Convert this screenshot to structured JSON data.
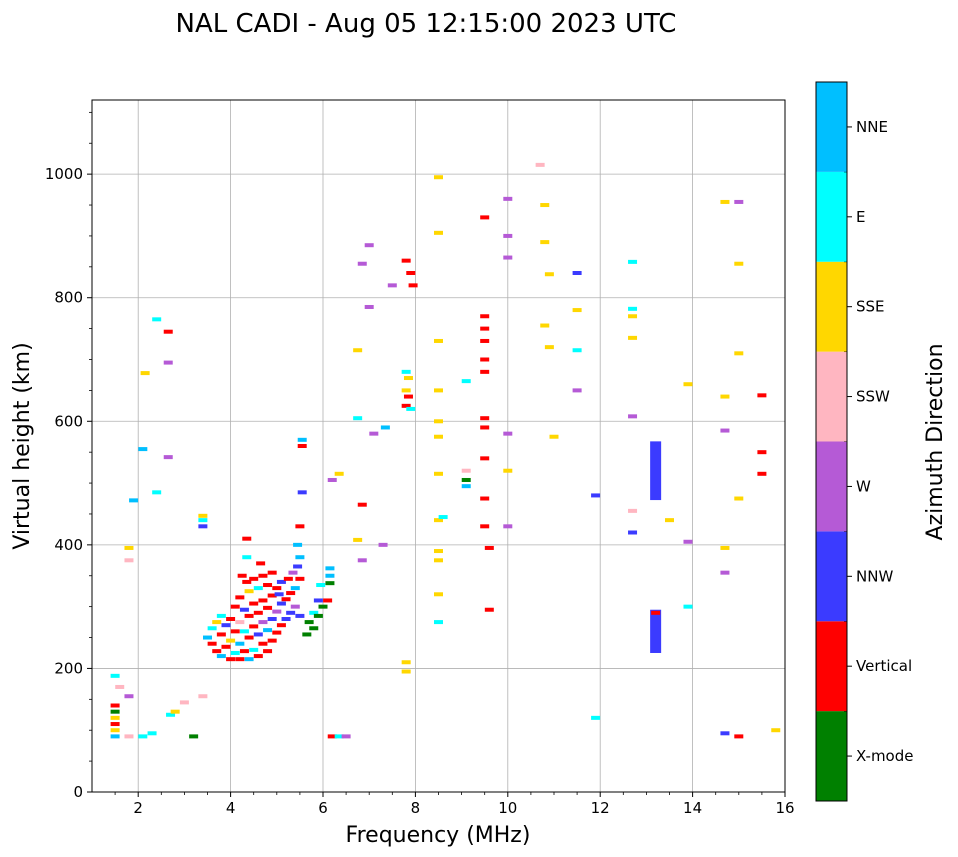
{
  "chart_data": {
    "type": "scatter",
    "title": "NAL CADI - Aug 05 12:15:00 2023 UTC",
    "xlabel": "Frequency (MHz)",
    "ylabel": "Virtual height (km)",
    "xlim": [
      1,
      16
    ],
    "ylim": [
      0,
      1120
    ],
    "xticks": [
      2,
      4,
      6,
      8,
      10,
      12,
      14,
      16
    ],
    "yticks": [
      0,
      200,
      400,
      600,
      800,
      1000
    ],
    "grid": true,
    "colorbar": {
      "title": "Azimuth Direction",
      "categories": [
        {
          "name": "X-mode",
          "color": "#008000"
        },
        {
          "name": "Vertical",
          "color": "#ff0000"
        },
        {
          "name": "NNW",
          "color": "#3b3bff"
        },
        {
          "name": "W",
          "color": "#b55ad6"
        },
        {
          "name": "SSW",
          "color": "#ffb6c1"
        },
        {
          "name": "SSE",
          "color": "#ffd700"
        },
        {
          "name": "E",
          "color": "#00ffff"
        },
        {
          "name": "NNE",
          "color": "#00bfff"
        }
      ]
    },
    "echoes": [
      {
        "f": 1.5,
        "h": 90,
        "c": "NNE"
      },
      {
        "f": 1.5,
        "h": 100,
        "c": "SSE"
      },
      {
        "f": 1.5,
        "h": 110,
        "c": "Vertical"
      },
      {
        "f": 1.5,
        "h": 120,
        "c": "SSE"
      },
      {
        "f": 1.5,
        "h": 130,
        "c": "X-mode"
      },
      {
        "f": 1.5,
        "h": 140,
        "c": "Vertical"
      },
      {
        "f": 1.5,
        "h": 188,
        "c": "E"
      },
      {
        "f": 1.6,
        "h": 170,
        "c": "SSW"
      },
      {
        "f": 1.8,
        "h": 90,
        "c": "SSW"
      },
      {
        "f": 1.8,
        "h": 155,
        "c": "W"
      },
      {
        "f": 1.8,
        "h": 395,
        "c": "SSE"
      },
      {
        "f": 1.8,
        "h": 375,
        "c": "SSW"
      },
      {
        "f": 1.9,
        "h": 472,
        "c": "NNE"
      },
      {
        "f": 2.1,
        "h": 90,
        "c": "E"
      },
      {
        "f": 2.1,
        "h": 555,
        "c": "NNE"
      },
      {
        "f": 2.15,
        "h": 678,
        "c": "SSE"
      },
      {
        "f": 2.3,
        "h": 95,
        "c": "E"
      },
      {
        "f": 2.4,
        "h": 765,
        "c": "E"
      },
      {
        "f": 2.4,
        "h": 485,
        "c": "E"
      },
      {
        "f": 2.65,
        "h": 745,
        "c": "Vertical"
      },
      {
        "f": 2.65,
        "h": 695,
        "c": "W"
      },
      {
        "f": 2.65,
        "h": 542,
        "c": "W"
      },
      {
        "f": 2.7,
        "h": 125,
        "c": "E"
      },
      {
        "f": 2.8,
        "h": 130,
        "c": "SSE"
      },
      {
        "f": 3.0,
        "h": 145,
        "c": "SSW"
      },
      {
        "f": 3.2,
        "h": 90,
        "c": "X-mode"
      },
      {
        "f": 3.4,
        "h": 155,
        "c": "SSW"
      },
      {
        "f": 3.4,
        "h": 430,
        "c": "NNW"
      },
      {
        "f": 3.4,
        "h": 440,
        "c": "E"
      },
      {
        "f": 3.4,
        "h": 447,
        "c": "SSE"
      },
      {
        "f": 3.5,
        "h": 250,
        "c": "NNE"
      },
      {
        "f": 3.6,
        "h": 240,
        "c": "Vertical"
      },
      {
        "f": 3.6,
        "h": 265,
        "c": "E"
      },
      {
        "f": 3.7,
        "h": 228,
        "c": "Vertical"
      },
      {
        "f": 3.7,
        "h": 275,
        "c": "SSE"
      },
      {
        "f": 3.8,
        "h": 220,
        "c": "NNE"
      },
      {
        "f": 3.8,
        "h": 255,
        "c": "Vertical"
      },
      {
        "f": 3.8,
        "h": 285,
        "c": "E"
      },
      {
        "f": 3.9,
        "h": 235,
        "c": "Vertical"
      },
      {
        "f": 3.9,
        "h": 270,
        "c": "NNW"
      },
      {
        "f": 4.0,
        "h": 215,
        "c": "Vertical"
      },
      {
        "f": 4.0,
        "h": 245,
        "c": "SSE"
      },
      {
        "f": 4.0,
        "h": 280,
        "c": "Vertical"
      },
      {
        "f": 4.1,
        "h": 225,
        "c": "E"
      },
      {
        "f": 4.1,
        "h": 260,
        "c": "Vertical"
      },
      {
        "f": 4.1,
        "h": 300,
        "c": "Vertical"
      },
      {
        "f": 4.2,
        "h": 215,
        "c": "Vertical"
      },
      {
        "f": 4.2,
        "h": 240,
        "c": "NNE"
      },
      {
        "f": 4.2,
        "h": 275,
        "c": "SSW"
      },
      {
        "f": 4.2,
        "h": 315,
        "c": "Vertical"
      },
      {
        "f": 4.25,
        "h": 350,
        "c": "Vertical"
      },
      {
        "f": 4.3,
        "h": 228,
        "c": "Vertical"
      },
      {
        "f": 4.3,
        "h": 260,
        "c": "E"
      },
      {
        "f": 4.3,
        "h": 295,
        "c": "NNW"
      },
      {
        "f": 4.35,
        "h": 340,
        "c": "Vertical"
      },
      {
        "f": 4.35,
        "h": 380,
        "c": "E"
      },
      {
        "f": 4.4,
        "h": 215,
        "c": "NNE"
      },
      {
        "f": 4.4,
        "h": 250,
        "c": "Vertical"
      },
      {
        "f": 4.4,
        "h": 285,
        "c": "Vertical"
      },
      {
        "f": 4.4,
        "h": 325,
        "c": "SSE"
      },
      {
        "f": 4.35,
        "h": 410,
        "c": "Vertical"
      },
      {
        "f": 4.5,
        "h": 230,
        "c": "E"
      },
      {
        "f": 4.5,
        "h": 268,
        "c": "Vertical"
      },
      {
        "f": 4.5,
        "h": 305,
        "c": "Vertical"
      },
      {
        "f": 4.5,
        "h": 345,
        "c": "Vertical"
      },
      {
        "f": 4.6,
        "h": 220,
        "c": "Vertical"
      },
      {
        "f": 4.6,
        "h": 255,
        "c": "NNW"
      },
      {
        "f": 4.6,
        "h": 290,
        "c": "Vertical"
      },
      {
        "f": 4.6,
        "h": 330,
        "c": "E"
      },
      {
        "f": 4.65,
        "h": 370,
        "c": "Vertical"
      },
      {
        "f": 4.7,
        "h": 240,
        "c": "Vertical"
      },
      {
        "f": 4.7,
        "h": 275,
        "c": "W"
      },
      {
        "f": 4.7,
        "h": 310,
        "c": "Vertical"
      },
      {
        "f": 4.7,
        "h": 350,
        "c": "Vertical"
      },
      {
        "f": 4.8,
        "h": 228,
        "c": "Vertical"
      },
      {
        "f": 4.8,
        "h": 262,
        "c": "NNE"
      },
      {
        "f": 4.8,
        "h": 298,
        "c": "Vertical"
      },
      {
        "f": 4.8,
        "h": 335,
        "c": "Vertical"
      },
      {
        "f": 4.9,
        "h": 245,
        "c": "Vertical"
      },
      {
        "f": 4.9,
        "h": 280,
        "c": "NNW"
      },
      {
        "f": 4.9,
        "h": 318,
        "c": "Vertical"
      },
      {
        "f": 4.9,
        "h": 355,
        "c": "Vertical"
      },
      {
        "f": 5.0,
        "h": 258,
        "c": "Vertical"
      },
      {
        "f": 5.0,
        "h": 292,
        "c": "W"
      },
      {
        "f": 5.0,
        "h": 330,
        "c": "Vertical"
      },
      {
        "f": 5.05,
        "h": 320,
        "c": "NNW"
      },
      {
        "f": 5.1,
        "h": 270,
        "c": "Vertical"
      },
      {
        "f": 5.1,
        "h": 305,
        "c": "NNW"
      },
      {
        "f": 5.1,
        "h": 340,
        "c": "NNW"
      },
      {
        "f": 5.2,
        "h": 280,
        "c": "NNW"
      },
      {
        "f": 5.2,
        "h": 312,
        "c": "Vertical"
      },
      {
        "f": 5.25,
        "h": 345,
        "c": "Vertical"
      },
      {
        "f": 5.3,
        "h": 290,
        "c": "NNW"
      },
      {
        "f": 5.3,
        "h": 322,
        "c": "Vertical"
      },
      {
        "f": 5.35,
        "h": 355,
        "c": "W"
      },
      {
        "f": 5.4,
        "h": 300,
        "c": "W"
      },
      {
        "f": 5.4,
        "h": 330,
        "c": "NNE"
      },
      {
        "f": 5.45,
        "h": 365,
        "c": "NNW"
      },
      {
        "f": 5.45,
        "h": 400,
        "c": "NNE"
      },
      {
        "f": 5.5,
        "h": 285,
        "c": "NNW"
      },
      {
        "f": 5.5,
        "h": 345,
        "c": "Vertical"
      },
      {
        "f": 5.5,
        "h": 380,
        "c": "NNE"
      },
      {
        "f": 5.5,
        "h": 430,
        "c": "Vertical"
      },
      {
        "f": 5.55,
        "h": 560,
        "c": "Vertical"
      },
      {
        "f": 5.55,
        "h": 570,
        "c": "NNE"
      },
      {
        "f": 5.55,
        "h": 485,
        "c": "NNW"
      },
      {
        "f": 5.65,
        "h": 255,
        "c": "X-mode"
      },
      {
        "f": 5.7,
        "h": 275,
        "c": "X-mode"
      },
      {
        "f": 5.8,
        "h": 265,
        "c": "X-mode"
      },
      {
        "f": 5.8,
        "h": 290,
        "c": "E"
      },
      {
        "f": 5.9,
        "h": 285,
        "c": "X-mode"
      },
      {
        "f": 5.9,
        "h": 310,
        "c": "NNW"
      },
      {
        "f": 5.95,
        "h": 335,
        "c": "E"
      },
      {
        "f": 6.0,
        "h": 300,
        "c": "X-mode"
      },
      {
        "f": 6.1,
        "h": 310,
        "c": "Vertical"
      },
      {
        "f": 6.15,
        "h": 350,
        "c": "NNE"
      },
      {
        "f": 6.15,
        "h": 362,
        "c": "NNE"
      },
      {
        "f": 6.15,
        "h": 338,
        "c": "X-mode"
      },
      {
        "f": 6.2,
        "h": 505,
        "c": "W"
      },
      {
        "f": 6.35,
        "h": 515,
        "c": "SSE"
      },
      {
        "f": 6.2,
        "h": 90,
        "c": "Vertical"
      },
      {
        "f": 6.35,
        "h": 90,
        "c": "E"
      },
      {
        "f": 6.5,
        "h": 90,
        "c": "W"
      },
      {
        "f": 6.75,
        "h": 408,
        "c": "SSE"
      },
      {
        "f": 6.75,
        "h": 605,
        "c": "E"
      },
      {
        "f": 6.75,
        "h": 715,
        "c": "SSE"
      },
      {
        "f": 6.85,
        "h": 465,
        "c": "Vertical"
      },
      {
        "f": 6.85,
        "h": 375,
        "c": "W"
      },
      {
        "f": 6.85,
        "h": 855,
        "c": "W"
      },
      {
        "f": 7.0,
        "h": 885,
        "c": "W"
      },
      {
        "f": 7.0,
        "h": 785,
        "c": "W"
      },
      {
        "f": 7.1,
        "h": 580,
        "c": "W"
      },
      {
        "f": 7.3,
        "h": 400,
        "c": "W"
      },
      {
        "f": 7.35,
        "h": 590,
        "c": "NNE"
      },
      {
        "f": 7.5,
        "h": 820,
        "c": "W"
      },
      {
        "f": 7.8,
        "h": 860,
        "c": "Vertical"
      },
      {
        "f": 7.8,
        "h": 680,
        "c": "E"
      },
      {
        "f": 7.8,
        "h": 650,
        "c": "SSE"
      },
      {
        "f": 7.8,
        "h": 625,
        "c": "Vertical"
      },
      {
        "f": 7.9,
        "h": 840,
        "c": "Vertical"
      },
      {
        "f": 7.95,
        "h": 820,
        "c": "Vertical"
      },
      {
        "f": 7.85,
        "h": 670,
        "c": "SSE"
      },
      {
        "f": 7.85,
        "h": 640,
        "c": "Vertical"
      },
      {
        "f": 7.9,
        "h": 620,
        "c": "E"
      },
      {
        "f": 7.8,
        "h": 210,
        "c": "SSE"
      },
      {
        "f": 7.8,
        "h": 195,
        "c": "SSE"
      },
      {
        "f": 8.5,
        "h": 995,
        "c": "SSE"
      },
      {
        "f": 8.5,
        "h": 905,
        "c": "SSE"
      },
      {
        "f": 8.5,
        "h": 730,
        "c": "SSE"
      },
      {
        "f": 8.5,
        "h": 650,
        "c": "SSE"
      },
      {
        "f": 8.5,
        "h": 600,
        "c": "SSE"
      },
      {
        "f": 8.5,
        "h": 575,
        "c": "SSE"
      },
      {
        "f": 8.5,
        "h": 515,
        "c": "SSE"
      },
      {
        "f": 8.5,
        "h": 440,
        "c": "SSE"
      },
      {
        "f": 8.5,
        "h": 390,
        "c": "SSE"
      },
      {
        "f": 8.5,
        "h": 375,
        "c": "SSE"
      },
      {
        "f": 8.5,
        "h": 320,
        "c": "SSE"
      },
      {
        "f": 8.5,
        "h": 275,
        "c": "E"
      },
      {
        "f": 8.6,
        "h": 445,
        "c": "E"
      },
      {
        "f": 9.1,
        "h": 665,
        "c": "E"
      },
      {
        "f": 9.1,
        "h": 520,
        "c": "SSW"
      },
      {
        "f": 9.1,
        "h": 505,
        "c": "X-mode"
      },
      {
        "f": 9.1,
        "h": 495,
        "c": "NNE"
      },
      {
        "f": 9.5,
        "h": 930,
        "c": "Vertical"
      },
      {
        "f": 9.5,
        "h": 770,
        "c": "Vertical"
      },
      {
        "f": 9.5,
        "h": 750,
        "c": "Vertical"
      },
      {
        "f": 9.5,
        "h": 730,
        "c": "Vertical"
      },
      {
        "f": 9.5,
        "h": 700,
        "c": "Vertical"
      },
      {
        "f": 9.5,
        "h": 680,
        "c": "Vertical"
      },
      {
        "f": 9.5,
        "h": 605,
        "c": "Vertical"
      },
      {
        "f": 9.5,
        "h": 590,
        "c": "Vertical"
      },
      {
        "f": 9.5,
        "h": 540,
        "c": "Vertical"
      },
      {
        "f": 9.5,
        "h": 475,
        "c": "Vertical"
      },
      {
        "f": 9.5,
        "h": 430,
        "c": "Vertical"
      },
      {
        "f": 9.6,
        "h": 395,
        "c": "Vertical"
      },
      {
        "f": 9.6,
        "h": 295,
        "c": "Vertical"
      },
      {
        "f": 10.0,
        "h": 960,
        "c": "W"
      },
      {
        "f": 10.0,
        "h": 900,
        "c": "W"
      },
      {
        "f": 10.0,
        "h": 865,
        "c": "W"
      },
      {
        "f": 10.0,
        "h": 580,
        "c": "W"
      },
      {
        "f": 10.0,
        "h": 520,
        "c": "SSE"
      },
      {
        "f": 10.0,
        "h": 430,
        "c": "W"
      },
      {
        "f": 10.7,
        "h": 1015,
        "c": "SSW"
      },
      {
        "f": 10.8,
        "h": 950,
        "c": "SSE"
      },
      {
        "f": 10.8,
        "h": 890,
        "c": "SSE"
      },
      {
        "f": 10.8,
        "h": 755,
        "c": "SSE"
      },
      {
        "f": 10.9,
        "h": 720,
        "c": "SSE"
      },
      {
        "f": 10.9,
        "h": 838,
        "c": "SSE"
      },
      {
        "f": 11.0,
        "h": 575,
        "c": "SSE"
      },
      {
        "f": 11.5,
        "h": 840,
        "c": "NNW"
      },
      {
        "f": 11.5,
        "h": 780,
        "c": "SSE"
      },
      {
        "f": 11.5,
        "h": 715,
        "c": "E"
      },
      {
        "f": 11.5,
        "h": 650,
        "c": "W"
      },
      {
        "f": 11.9,
        "h": 480,
        "c": "NNW"
      },
      {
        "f": 11.9,
        "h": 120,
        "c": "E"
      },
      {
        "f": 12.7,
        "h": 858,
        "c": "E"
      },
      {
        "f": 12.7,
        "h": 782,
        "c": "E"
      },
      {
        "f": 12.7,
        "h": 770,
        "c": "SSE"
      },
      {
        "f": 12.7,
        "h": 735,
        "c": "SSE"
      },
      {
        "f": 12.7,
        "h": 608,
        "c": "W"
      },
      {
        "f": 12.7,
        "h": 455,
        "c": "SSW"
      },
      {
        "f": 12.7,
        "h": 420,
        "c": "NNW"
      },
      {
        "f": 13.2,
        "h": 520,
        "c": "NNW"
      },
      {
        "f": 13.2,
        "h": 260,
        "c": "NNW"
      },
      {
        "f": 13.2,
        "h": 290,
        "c": "Vertical"
      },
      {
        "f": 13.5,
        "h": 440,
        "c": "SSE"
      },
      {
        "f": 13.9,
        "h": 660,
        "c": "SSE"
      },
      {
        "f": 13.9,
        "h": 405,
        "c": "W"
      },
      {
        "f": 13.9,
        "h": 300,
        "c": "E"
      },
      {
        "f": 14.7,
        "h": 955,
        "c": "SSE"
      },
      {
        "f": 14.7,
        "h": 640,
        "c": "SSE"
      },
      {
        "f": 14.7,
        "h": 585,
        "c": "W"
      },
      {
        "f": 14.7,
        "h": 395,
        "c": "SSE"
      },
      {
        "f": 14.7,
        "h": 355,
        "c": "W"
      },
      {
        "f": 14.7,
        "h": 95,
        "c": "NNW"
      },
      {
        "f": 15.0,
        "h": 955,
        "c": "W"
      },
      {
        "f": 15.0,
        "h": 855,
        "c": "SSE"
      },
      {
        "f": 15.0,
        "h": 710,
        "c": "SSE"
      },
      {
        "f": 15.0,
        "h": 475,
        "c": "SSE"
      },
      {
        "f": 15.0,
        "h": 90,
        "c": "Vertical"
      },
      {
        "f": 15.5,
        "h": 642,
        "c": "Vertical"
      },
      {
        "f": 15.5,
        "h": 550,
        "c": "Vertical"
      },
      {
        "f": 15.5,
        "h": 515,
        "c": "Vertical"
      },
      {
        "f": 15.8,
        "h": 100,
        "c": "SSE"
      }
    ]
  }
}
